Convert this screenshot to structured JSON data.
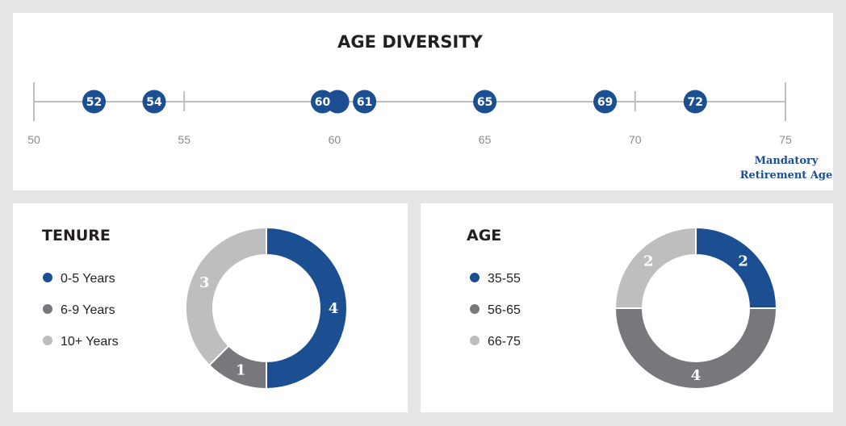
{
  "colors": {
    "blue": "#1b4f91",
    "dark_gray": "#77787b",
    "light_gray": "#bcbec0",
    "axis": "#bcbec0",
    "text": "#231f20"
  },
  "chart_data": [
    {
      "type": "scatter",
      "title": "AGE DIVERSITY",
      "xlim": [
        50,
        75
      ],
      "ticks": [
        50,
        55,
        60,
        65,
        70,
        75
      ],
      "points": [
        52,
        54,
        59.6,
        60.1,
        61,
        65,
        69,
        72
      ],
      "point_labels": [
        "52",
        "54",
        "60",
        "",
        "61",
        "65",
        "69",
        "72"
      ],
      "annotation": "Mandatory Retirement Age",
      "annotation_lines": [
        "Mandatory",
        "Retirement Age"
      ],
      "legend": "none"
    },
    {
      "type": "pie",
      "title": "TENURE",
      "categories": [
        "0-5 Years",
        "6-9 Years",
        "10+ Years"
      ],
      "values": [
        4,
        1,
        3
      ],
      "colors": [
        "#1b4f91",
        "#77787b",
        "#bcbec0"
      ],
      "legend": "left"
    },
    {
      "type": "pie",
      "title": "AGE",
      "categories": [
        "35-55",
        "56-65",
        "66-75"
      ],
      "values": [
        2,
        4,
        2
      ],
      "colors": [
        "#1b4f91",
        "#77787b",
        "#bcbec0"
      ],
      "legend": "left"
    }
  ]
}
